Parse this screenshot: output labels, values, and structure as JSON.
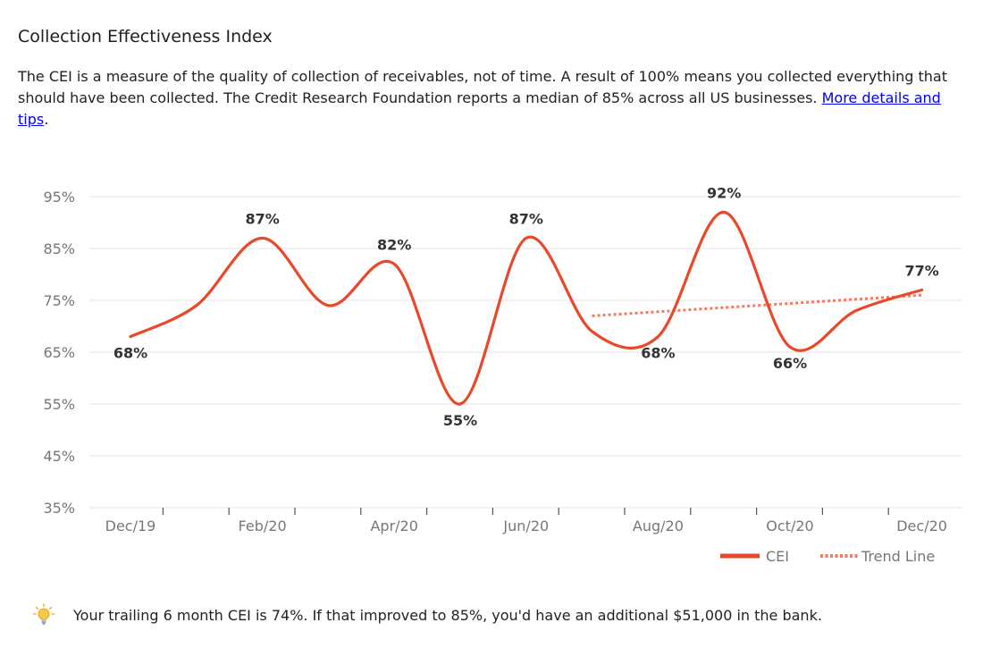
{
  "header": {
    "title": "Collection Effectiveness Index",
    "description_text": "The CEI is a measure of the quality of collection of receivables, not of time. A result of 100% means you collected everything that should have been collected. The Credit Research Foundation reports a median of 85% across all US businesses. ",
    "link_text": "More details and tips",
    "description_end": "."
  },
  "colors": {
    "cei": "#e8492a",
    "trend": "#f07a62",
    "grid": "#e4e4e4",
    "axis_text": "#777777",
    "label_text": "#333333",
    "bulb": "#f5b731"
  },
  "chart_data": {
    "type": "line",
    "title": "",
    "xlabel": "",
    "ylabel": "",
    "ylim": [
      35,
      95
    ],
    "y_ticks": [
      35,
      45,
      55,
      65,
      75,
      85,
      95
    ],
    "y_tick_format": "{v}%",
    "x_tick_labels": [
      "Dec/19",
      "Feb/20",
      "Apr/20",
      "Jun/20",
      "Aug/20",
      "Oct/20",
      "Dec/20"
    ],
    "x_tick_label_index": [
      0,
      2,
      4,
      6,
      8,
      10,
      12
    ],
    "grid": true,
    "legend_position": "bottom-right",
    "series": [
      {
        "name": "CEI",
        "style": "solid",
        "x": [
          0,
          1,
          2,
          3,
          4,
          5,
          6,
          7,
          8,
          9,
          10,
          11,
          12
        ],
        "values": [
          68,
          74,
          87,
          74,
          82,
          55,
          87,
          69,
          68,
          92,
          66,
          73,
          77
        ],
        "point_labels": [
          {
            "index": 0,
            "text": "68%",
            "position": "below"
          },
          {
            "index": 2,
            "text": "87%",
            "position": "above"
          },
          {
            "index": 4,
            "text": "82%",
            "position": "above"
          },
          {
            "index": 5,
            "text": "55%",
            "position": "below"
          },
          {
            "index": 6,
            "text": "87%",
            "position": "above"
          },
          {
            "index": 8,
            "text": "68%",
            "position": "below"
          },
          {
            "index": 9,
            "text": "92%",
            "position": "above"
          },
          {
            "index": 10,
            "text": "66%",
            "position": "below"
          },
          {
            "index": 12,
            "text": "77%",
            "position": "above"
          }
        ]
      },
      {
        "name": "Trend Line",
        "style": "dotted",
        "x": [
          7,
          12
        ],
        "values": [
          72,
          76
        ]
      }
    ]
  },
  "footer": {
    "icon": "lightbulb-icon",
    "text": "Your trailing 6 month CEI is 74%. If that improved to 85%, you'd have an additional $51,000 in the bank."
  }
}
